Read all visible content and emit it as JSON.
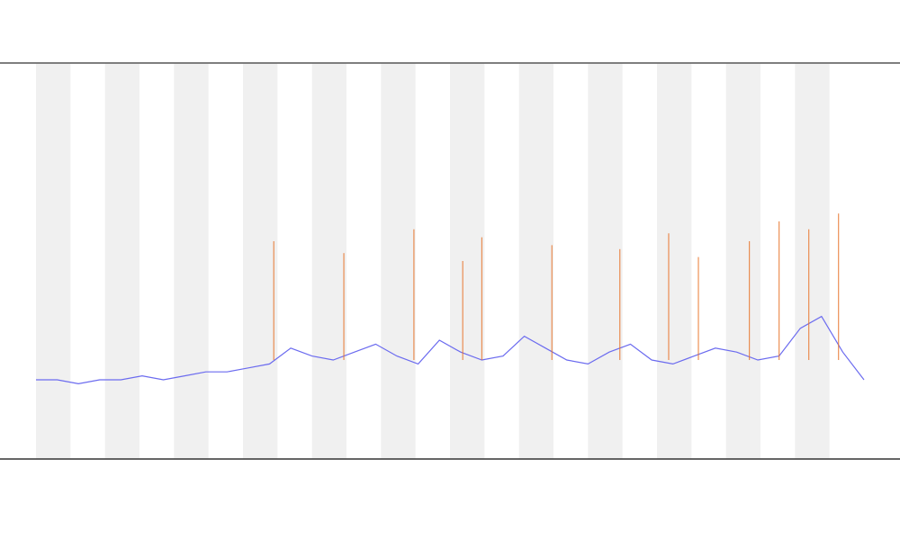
{
  "chart_data": {
    "type": "line",
    "xlim": [
      0,
      39
    ],
    "ylim": [
      0,
      100
    ],
    "series": [
      {
        "style": "line",
        "color": "#6b6bef",
        "x": [
          0,
          1,
          2,
          3,
          4,
          5,
          6,
          7,
          8,
          9,
          10,
          11,
          12,
          13,
          14,
          15,
          16,
          17,
          18,
          19,
          20,
          21,
          22,
          23,
          24,
          25,
          26,
          27,
          28,
          29,
          30,
          31,
          32,
          33,
          34,
          35,
          36,
          37,
          38,
          39
        ],
        "values": [
          20,
          20,
          19,
          20,
          20,
          21,
          20,
          21,
          22,
          22,
          23,
          24,
          28,
          26,
          25,
          27,
          29,
          26,
          24,
          30,
          27,
          25,
          26,
          31,
          28,
          25,
          24,
          27,
          29,
          25,
          24,
          26,
          28,
          27,
          25,
          26,
          33,
          36,
          27,
          20
        ]
      },
      {
        "style": "spike",
        "color": "#e8742a",
        "x": [
          11.2,
          14.5,
          17.8,
          20.1,
          21.0,
          24.3,
          27.5,
          29.8,
          31.2,
          33.6,
          35.0,
          36.4,
          37.8
        ],
        "values": [
          55,
          52,
          58,
          50,
          56,
          54,
          53,
          57,
          51,
          55,
          60,
          58,
          62
        ]
      }
    ]
  }
}
